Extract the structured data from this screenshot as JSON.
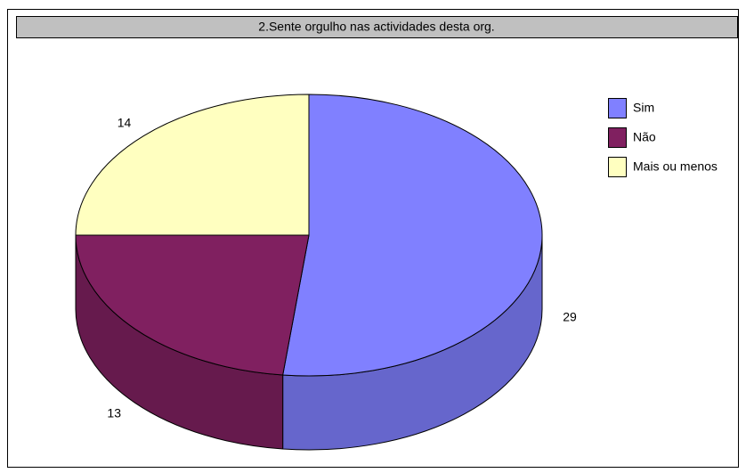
{
  "chart_data": {
    "type": "pie",
    "title": "2.Sente orgulho nas actividades desta org.",
    "categories": [
      "Sim",
      "Não",
      "Mais ou menos"
    ],
    "values": [
      29,
      13,
      14
    ],
    "colors": [
      "#8080ff",
      "#802060",
      "#ffffc0"
    ],
    "legend": "right"
  }
}
